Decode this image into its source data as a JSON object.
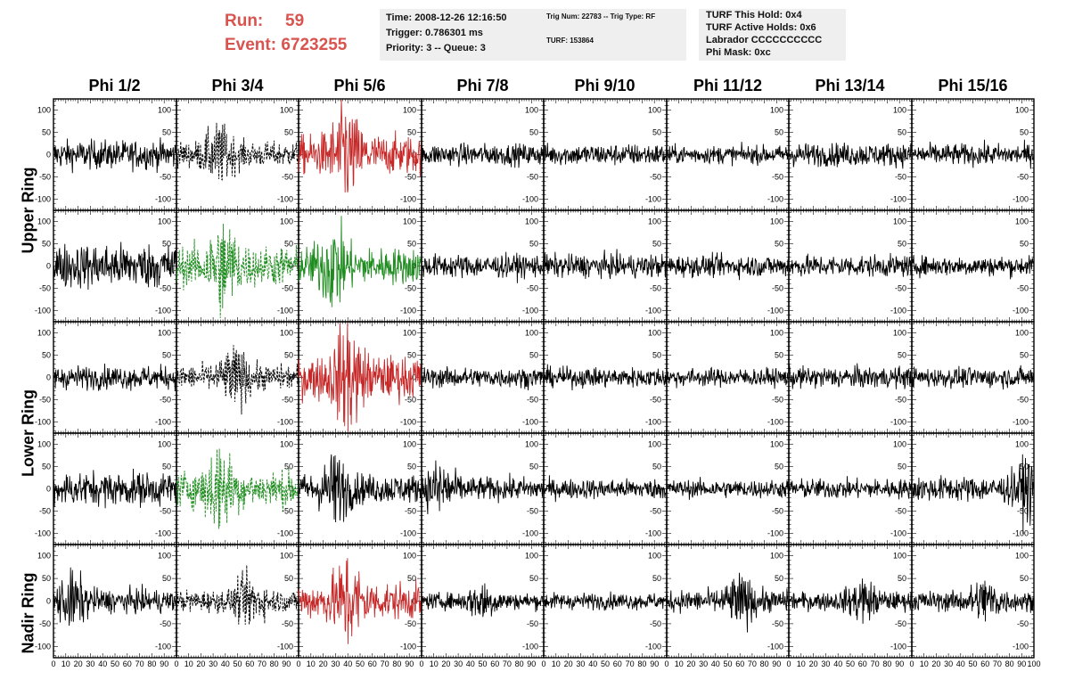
{
  "header": {
    "run_label": "Run:",
    "run_value": "59",
    "event_label": "Event:",
    "event_value": "6723255"
  },
  "info_time": {
    "time": "Time: 2008-12-26 12:16:50",
    "trigger": "Trigger: 0.786301 ms",
    "priority": "Priority: 3 -- Queue: 3"
  },
  "info_trig": {
    "trig": "Trig Num: 22783 -- Trig Type: RF",
    "turf": "TURF: 153864"
  },
  "info_turf": {
    "hold": "TURF This Hold: 0x4",
    "active": "TURF Active Holds: 0x6",
    "labrador": "Labrador CCCCCCCCCC",
    "phimask": "Phi Mask: 0xc"
  },
  "columns": [
    "Phi 1/2",
    "Phi 3/4",
    "Phi 5/6",
    "Phi 7/8",
    "Phi 9/10",
    "Phi 11/12",
    "Phi 13/14",
    "Phi 15/16"
  ],
  "rows": [
    "Upper Ring",
    "Upper Ring",
    "Lower Ring",
    "Lower Ring",
    "Nadir Ring"
  ],
  "colors": {
    "normal": "#000000",
    "highlight_red": "#c62828",
    "highlight_green": "#1e8c1e",
    "text_red": "#d9534f",
    "box_bg": "#efefef"
  },
  "chart_data": {
    "type": "line",
    "xlabel": "",
    "ylabel": "",
    "xlim": [
      0,
      100
    ],
    "ylim": [
      -125,
      125
    ],
    "x_ticks": [
      0,
      10,
      20,
      30,
      40,
      50,
      60,
      70,
      80,
      90,
      100
    ],
    "y_ticks": [
      -100,
      -50,
      0,
      50,
      100
    ],
    "samples": 260,
    "panels": [
      [
        {
          "color": "normal",
          "dashed": false,
          "amp": 16,
          "peak": 40,
          "peak_x": 0
        },
        {
          "color": "normal",
          "dashed": true,
          "amp": 14,
          "peak": 55,
          "peak_x": 35
        },
        {
          "color": "highlight_red",
          "dashed": false,
          "amp": 22,
          "peak": 85,
          "peak_x": 38
        },
        {
          "color": "normal",
          "dashed": false,
          "amp": 12,
          "peak": 30,
          "peak_x": 0
        },
        {
          "color": "normal",
          "dashed": false,
          "amp": 12,
          "peak": 30,
          "peak_x": 0
        },
        {
          "color": "normal",
          "dashed": false,
          "amp": 10,
          "peak": 25,
          "peak_x": 0
        },
        {
          "color": "normal",
          "dashed": false,
          "amp": 13,
          "peak": 40,
          "peak_x": 0
        },
        {
          "color": "normal",
          "dashed": false,
          "amp": 12,
          "peak": 35,
          "peak_x": 0
        }
      ],
      [
        {
          "color": "normal",
          "dashed": false,
          "amp": 25,
          "peak": 75,
          "peak_x": 0
        },
        {
          "color": "highlight_green",
          "dashed": true,
          "amp": 22,
          "peak": 95,
          "peak_x": 38
        },
        {
          "color": "highlight_green",
          "dashed": false,
          "amp": 20,
          "peak": 60,
          "peak_x": 28
        },
        {
          "color": "normal",
          "dashed": false,
          "amp": 13,
          "peak": 40,
          "peak_x": 0
        },
        {
          "color": "normal",
          "dashed": false,
          "amp": 13,
          "peak": 40,
          "peak_x": 0
        },
        {
          "color": "normal",
          "dashed": false,
          "amp": 12,
          "peak": 35,
          "peak_x": 0
        },
        {
          "color": "normal",
          "dashed": false,
          "amp": 12,
          "peak": 35,
          "peak_x": 0
        },
        {
          "color": "normal",
          "dashed": false,
          "amp": 11,
          "peak": 40,
          "peak_x": 0
        }
      ],
      [
        {
          "color": "normal",
          "dashed": false,
          "amp": 13,
          "peak": 35,
          "peak_x": 0
        },
        {
          "color": "normal",
          "dashed": true,
          "amp": 14,
          "peak": 55,
          "peak_x": 48
        },
        {
          "color": "highlight_red",
          "dashed": false,
          "amp": 24,
          "peak": 125,
          "peak_x": 40
        },
        {
          "color": "normal",
          "dashed": false,
          "amp": 11,
          "peak": 30,
          "peak_x": 0
        },
        {
          "color": "normal",
          "dashed": false,
          "amp": 11,
          "peak": 30,
          "peak_x": 0
        },
        {
          "color": "normal",
          "dashed": false,
          "amp": 10,
          "peak": 30,
          "peak_x": 0
        },
        {
          "color": "normal",
          "dashed": false,
          "amp": 12,
          "peak": 35,
          "peak_x": 0
        },
        {
          "color": "normal",
          "dashed": false,
          "amp": 11,
          "peak": 35,
          "peak_x": 0
        }
      ],
      [
        {
          "color": "normal",
          "dashed": false,
          "amp": 19,
          "peak": 45,
          "peak_x": 0
        },
        {
          "color": "highlight_green",
          "dashed": true,
          "amp": 20,
          "peak": 90,
          "peak_x": 35
        },
        {
          "color": "normal",
          "dashed": false,
          "amp": 16,
          "peak": 75,
          "peak_x": 30
        },
        {
          "color": "normal",
          "dashed": false,
          "amp": 13,
          "peak": 50,
          "peak_x": 15
        },
        {
          "color": "normal",
          "dashed": false,
          "amp": 11,
          "peak": 30,
          "peak_x": 0
        },
        {
          "color": "normal",
          "dashed": false,
          "amp": 10,
          "peak": 25,
          "peak_x": 0
        },
        {
          "color": "normal",
          "dashed": false,
          "amp": 11,
          "peak": 30,
          "peak_x": 0
        },
        {
          "color": "normal",
          "dashed": false,
          "amp": 14,
          "peak": 55,
          "peak_x": 95
        }
      ],
      [
        {
          "color": "normal",
          "dashed": false,
          "amp": 13,
          "peak": 45,
          "peak_x": 15
        },
        {
          "color": "normal",
          "dashed": true,
          "amp": 12,
          "peak": 45,
          "peak_x": 60
        },
        {
          "color": "highlight_red",
          "dashed": false,
          "amp": 20,
          "peak": 95,
          "peak_x": 40
        },
        {
          "color": "normal",
          "dashed": false,
          "amp": 9,
          "peak": 35,
          "peak_x": 50
        },
        {
          "color": "normal",
          "dashed": false,
          "amp": 9,
          "peak": 30,
          "peak_x": 0
        },
        {
          "color": "normal",
          "dashed": false,
          "amp": 12,
          "peak": 40,
          "peak_x": 60
        },
        {
          "color": "normal",
          "dashed": false,
          "amp": 10,
          "peak": 50,
          "peak_x": 60
        },
        {
          "color": "normal",
          "dashed": false,
          "amp": 11,
          "peak": 45,
          "peak_x": 60
        }
      ]
    ]
  }
}
